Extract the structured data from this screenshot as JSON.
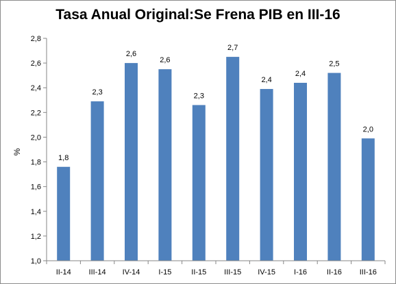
{
  "chart_data": {
    "type": "bar",
    "title": "Tasa Anual Original:Se Frena PIB en III-16",
    "xlabel": "",
    "ylabel": "%",
    "categories": [
      "II-14",
      "III-14",
      "IV-14",
      "I-15",
      "II-15",
      "III-15",
      "IV-15",
      "I-16",
      "II-16",
      "III-16"
    ],
    "values": [
      1.76,
      2.29,
      2.6,
      2.55,
      2.26,
      2.65,
      2.39,
      2.44,
      2.52,
      1.99
    ],
    "data_labels": [
      "1,8",
      "2,3",
      "2,6",
      "2,6",
      "2,3",
      "2,7",
      "2,4",
      "2,4",
      "2,5",
      "2,0"
    ],
    "ylim": [
      1.0,
      2.8
    ],
    "yticks": [
      1.0,
      1.2,
      1.4,
      1.6,
      1.8,
      2.0,
      2.2,
      2.4,
      2.6,
      2.8
    ],
    "ytick_labels": [
      "1,0",
      "1,2",
      "1,4",
      "1,6",
      "1,8",
      "2,0",
      "2,2",
      "2,4",
      "2,6",
      "2,8"
    ],
    "grid": false,
    "legend": "none",
    "bar_color": "#4f81bd"
  }
}
